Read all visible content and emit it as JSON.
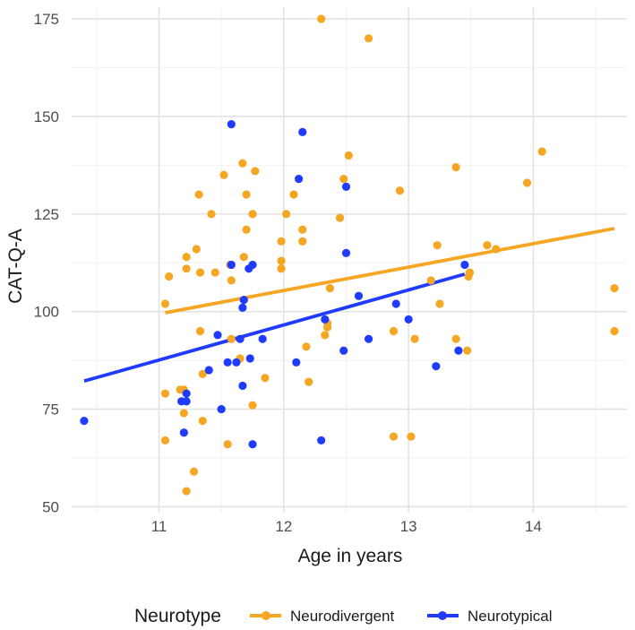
{
  "chart_data": {
    "type": "scatter",
    "title": "",
    "xlabel": "Age in years",
    "ylabel": "CAT-Q-A",
    "xlim": [
      10.3,
      14.75
    ],
    "ylim": [
      48.5,
      178
    ],
    "x_ticks": [
      11,
      12,
      13,
      14
    ],
    "y_ticks": [
      50,
      75,
      100,
      125,
      150,
      175
    ],
    "x_minor_ticks": [
      10.5,
      11.5,
      12.5,
      13.5,
      14.5
    ],
    "y_minor_ticks": [
      62.5,
      87.5,
      112.5,
      137.5,
      162.5
    ],
    "grid": true,
    "legend": {
      "title": "Neurotype",
      "position": "bottom",
      "entries": [
        "Neurodivergent",
        "Neurotypical"
      ]
    },
    "series": [
      {
        "name": "Neurodivergent",
        "color": "#F5A623",
        "points": [
          [
            11.05,
            102
          ],
          [
            11.08,
            109
          ],
          [
            11.05,
            79
          ],
          [
            11.05,
            67
          ],
          [
            11.17,
            80
          ],
          [
            11.2,
            80
          ],
          [
            11.2,
            74
          ],
          [
            11.22,
            111
          ],
          [
            11.22,
            114
          ],
          [
            11.22,
            54
          ],
          [
            11.28,
            59
          ],
          [
            11.3,
            116
          ],
          [
            11.32,
            130
          ],
          [
            11.33,
            110
          ],
          [
            11.33,
            95
          ],
          [
            11.35,
            84
          ],
          [
            11.35,
            72
          ],
          [
            11.42,
            125
          ],
          [
            11.45,
            110
          ],
          [
            11.52,
            135
          ],
          [
            11.55,
            66
          ],
          [
            11.57,
            112
          ],
          [
            11.58,
            108
          ],
          [
            11.58,
            93
          ],
          [
            11.65,
            88
          ],
          [
            11.67,
            138
          ],
          [
            11.68,
            114
          ],
          [
            11.7,
            130
          ],
          [
            11.7,
            121
          ],
          [
            11.75,
            125
          ],
          [
            11.75,
            76
          ],
          [
            11.77,
            136
          ],
          [
            11.85,
            83
          ],
          [
            11.98,
            118
          ],
          [
            11.98,
            113
          ],
          [
            11.98,
            111
          ],
          [
            12.02,
            125
          ],
          [
            12.08,
            130
          ],
          [
            12.15,
            121
          ],
          [
            12.15,
            118
          ],
          [
            12.18,
            91
          ],
          [
            12.2,
            82
          ],
          [
            12.3,
            175
          ],
          [
            12.33,
            94
          ],
          [
            12.35,
            96
          ],
          [
            12.35,
            97
          ],
          [
            12.37,
            106
          ],
          [
            12.45,
            124
          ],
          [
            12.48,
            134
          ],
          [
            12.52,
            140
          ],
          [
            12.68,
            170
          ],
          [
            12.88,
            95
          ],
          [
            12.88,
            68
          ],
          [
            12.93,
            131
          ],
          [
            13.02,
            68
          ],
          [
            13.05,
            93
          ],
          [
            13.18,
            108
          ],
          [
            13.23,
            117
          ],
          [
            13.25,
            102
          ],
          [
            13.38,
            137
          ],
          [
            13.38,
            93
          ],
          [
            13.47,
            90
          ],
          [
            13.48,
            109
          ],
          [
            13.49,
            110
          ],
          [
            13.63,
            117
          ],
          [
            13.7,
            116
          ],
          [
            13.95,
            133
          ],
          [
            14.07,
            141
          ],
          [
            14.65,
            106
          ],
          [
            14.65,
            95
          ]
        ],
        "fit": {
          "x": [
            11.05,
            14.65
          ],
          "y": [
            99.7,
            121.3
          ]
        }
      },
      {
        "name": "Neurotypical",
        "color": "#1F3BFF",
        "points": [
          [
            10.4,
            72
          ],
          [
            11.18,
            77
          ],
          [
            11.2,
            69
          ],
          [
            11.22,
            77
          ],
          [
            11.22,
            79
          ],
          [
            11.4,
            85
          ],
          [
            11.47,
            94
          ],
          [
            11.5,
            75
          ],
          [
            11.55,
            87
          ],
          [
            11.58,
            148
          ],
          [
            11.58,
            112
          ],
          [
            11.62,
            87
          ],
          [
            11.65,
            93
          ],
          [
            11.67,
            81
          ],
          [
            11.67,
            101
          ],
          [
            11.68,
            103
          ],
          [
            11.72,
            111
          ],
          [
            11.73,
            88
          ],
          [
            11.75,
            112
          ],
          [
            11.75,
            66
          ],
          [
            11.83,
            93
          ],
          [
            12.1,
            87
          ],
          [
            12.12,
            134
          ],
          [
            12.15,
            146
          ],
          [
            12.3,
            67
          ],
          [
            12.33,
            98
          ],
          [
            12.48,
            90
          ],
          [
            12.5,
            115
          ],
          [
            12.5,
            132
          ],
          [
            12.6,
            104
          ],
          [
            12.68,
            93
          ],
          [
            12.9,
            102
          ],
          [
            13.0,
            98
          ],
          [
            13.22,
            86
          ],
          [
            13.4,
            90
          ],
          [
            13.45,
            112
          ]
        ],
        "fit": {
          "x": [
            10.4,
            13.45
          ],
          "y": [
            82.2,
            109.6
          ]
        }
      }
    ]
  }
}
